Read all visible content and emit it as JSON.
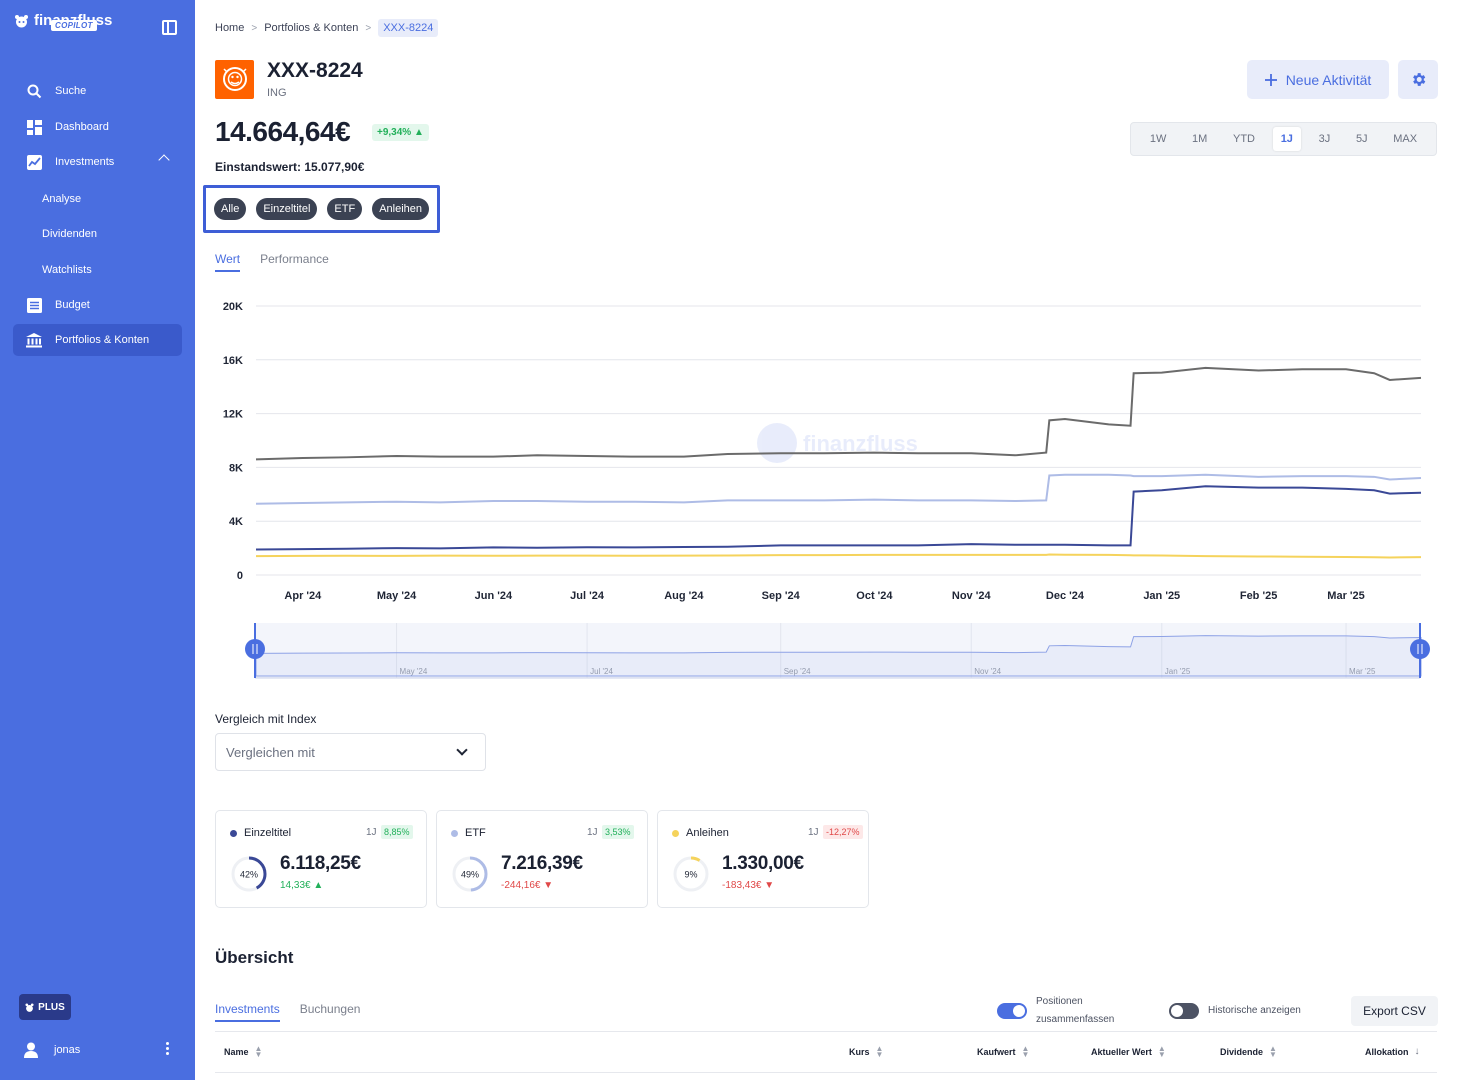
{
  "sidebar": {
    "brand": "finanzfluss",
    "badge": "COPILOT",
    "items": [
      {
        "label": "Suche"
      },
      {
        "label": "Dashboard"
      },
      {
        "label": "Investments"
      },
      {
        "label": "Analyse"
      },
      {
        "label": "Dividenden"
      },
      {
        "label": "Watchlists"
      },
      {
        "label": "Budget"
      },
      {
        "label": "Portfolios & Konten"
      }
    ],
    "plan": "PLUS",
    "user": "jonas"
  },
  "breadcrumb": [
    "Home",
    "Portfolios & Konten",
    "XXX-8224"
  ],
  "account": {
    "title": "XXX-8224",
    "bank": "ING",
    "value": "14.664,64€",
    "change": "+9,34% ▲",
    "cost_basis": "Einstandswert: 15.077,90€"
  },
  "actions": {
    "new_activity": "Neue Aktivität"
  },
  "ranges": [
    "1W",
    "1M",
    "YTD",
    "1J",
    "3J",
    "5J",
    "MAX"
  ],
  "active_range": "1J",
  "filters": [
    "Alle",
    "Einzeltitel",
    "ETF",
    "Anleihen"
  ],
  "chart_tabs": [
    "Wert",
    "Performance"
  ],
  "watermark": "finanzfluss",
  "colors": {
    "sidebar": "#4a6ee0",
    "total": "#6b6b6b",
    "einzeltitel": "#3a4896",
    "etf": "#aebce6",
    "anleihen": "#f5d35c"
  },
  "chart_data": {
    "type": "line",
    "x": [
      "2024-03-17",
      "2024-04-01",
      "2024-04-15",
      "2024-05-01",
      "2024-05-15",
      "2024-06-01",
      "2024-06-15",
      "2024-07-01",
      "2024-07-15",
      "2024-08-01",
      "2024-08-15",
      "2024-09-01",
      "2024-09-15",
      "2024-10-01",
      "2024-10-15",
      "2024-11-01",
      "2024-11-15",
      "2024-11-25",
      "2024-11-26",
      "2024-12-01",
      "2024-12-15",
      "2024-12-22",
      "2024-12-23",
      "2025-01-01",
      "2025-01-15",
      "2025-02-01",
      "2025-02-15",
      "2025-03-01",
      "2025-03-10",
      "2025-03-15",
      "2025-03-25"
    ],
    "series": [
      {
        "values": [
          8600,
          8700,
          8750,
          8850,
          8800,
          8800,
          8900,
          8850,
          8800,
          8800,
          9000,
          9050,
          9050,
          9100,
          9050,
          9050,
          8900,
          9100,
          11500,
          11600,
          11200,
          11100,
          15000,
          15050,
          15400,
          15200,
          15300,
          15300,
          15000,
          14500,
          14660
        ]
      },
      {
        "values": [
          5300,
          5350,
          5400,
          5450,
          5400,
          5500,
          5500,
          5450,
          5450,
          5400,
          5550,
          5550,
          5550,
          5600,
          5550,
          5550,
          5500,
          5550,
          7400,
          7450,
          7450,
          7400,
          7350,
          7350,
          7450,
          7300,
          7350,
          7350,
          7300,
          7100,
          7216
        ]
      },
      {
        "values": [
          1900,
          1920,
          1950,
          2000,
          1980,
          2050,
          2030,
          2060,
          2050,
          2080,
          2100,
          2200,
          2200,
          2200,
          2200,
          2300,
          2250,
          2250,
          2250,
          2250,
          2200,
          2200,
          6200,
          6300,
          6600,
          6500,
          6500,
          6400,
          6300,
          6050,
          6118
        ]
      },
      {
        "values": [
          1400,
          1420,
          1430,
          1420,
          1440,
          1430,
          1440,
          1440,
          1430,
          1440,
          1450,
          1480,
          1480,
          1500,
          1500,
          1500,
          1500,
          1500,
          1520,
          1510,
          1500,
          1470,
          1460,
          1450,
          1400,
          1380,
          1360,
          1340,
          1320,
          1300,
          1330
        ]
      }
    ],
    "x_tick_labels": [
      "Apr '24",
      "May '24",
      "Jun '24",
      "Jul '24",
      "Aug '24",
      "Sep '24",
      "Oct '24",
      "Nov '24",
      "Dec '24",
      "Jan '25",
      "Feb '25",
      "Mar '25"
    ],
    "y_tick_labels": [
      "0",
      "4K",
      "8K",
      "12K",
      "16K",
      "20K"
    ],
    "ylim": [
      0,
      20000
    ],
    "grid": true,
    "navigator_labels": [
      "May '24",
      "Jul '24",
      "Sep '24",
      "Nov '24",
      "Jan '25",
      "Mar '25"
    ]
  },
  "compare": {
    "label": "Vergleich mit Index",
    "placeholder": "Vergleichen mit"
  },
  "cards": [
    {
      "name": "Einzeltitel",
      "period": "1J",
      "pct": "8,85%",
      "alloc": 42,
      "alloc_label": "42%",
      "value": "6.118,25€",
      "delta": "14,33€ ▲",
      "trend": "up",
      "color": "#3a4896"
    },
    {
      "name": "ETF",
      "period": "1J",
      "pct": "3,53%",
      "alloc": 49,
      "alloc_label": "49%",
      "value": "7.216,39€",
      "delta": "-244,16€ ▼",
      "trend": "down",
      "color": "#aebce6"
    },
    {
      "name": "Anleihen",
      "period": "1J",
      "pct": "-12,27%",
      "alloc": 9,
      "alloc_label": "9%",
      "value": "1.330,00€",
      "delta": "-183,43€ ▼",
      "trend": "down",
      "color": "#f5d35c"
    }
  ],
  "overview": {
    "title": "Übersicht",
    "tabs": [
      "Investments",
      "Buchungen"
    ],
    "toggle_merge": "Positionen zusammenfassen",
    "toggle_history": "Historische anzeigen",
    "export": "Export CSV",
    "columns": [
      "Name",
      "Kurs",
      "Kaufwert",
      "Aktueller Wert",
      "Dividende",
      "Allokation"
    ]
  }
}
